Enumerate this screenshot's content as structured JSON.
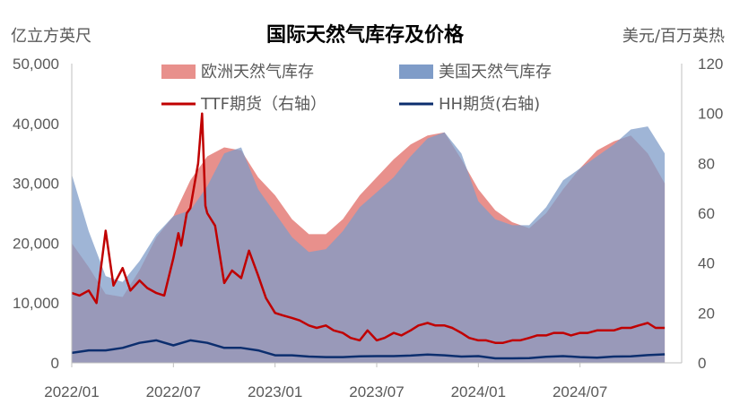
{
  "chart_data": {
    "type": "area",
    "title": "国际天然气库存及价格",
    "left_axis_unit": "亿立方英尺",
    "right_axis_unit": "美元/百万英热",
    "ylim_left": [
      0,
      50000
    ],
    "ylim_right": [
      0,
      120
    ],
    "yticks_left": [
      "0",
      "10,000",
      "20,000",
      "30,000",
      "40,000",
      "50,000"
    ],
    "yticks_right": [
      "0",
      "20",
      "40",
      "60",
      "80",
      "100",
      "120"
    ],
    "xlim": [
      "2022/01",
      "2024/12"
    ],
    "xticks": [
      "2022/01",
      "2022/07",
      "2023/01",
      "2023/07",
      "2024/01",
      "2024/07"
    ],
    "legend_position": "top",
    "series": [
      {
        "name": "欧洲天然气库存",
        "axis": "left",
        "kind": "area",
        "color": "#E8908C",
        "points": [
          [
            "2022/01",
            20000
          ],
          [
            "2022/02",
            16000
          ],
          [
            "2022/03",
            11500
          ],
          [
            "2022/04",
            11000
          ],
          [
            "2022/05",
            15500
          ],
          [
            "2022/06",
            21000
          ],
          [
            "2022/07",
            24500
          ],
          [
            "2022/08",
            30500
          ],
          [
            "2022/09",
            34500
          ],
          [
            "2022/10",
            36000
          ],
          [
            "2022/11",
            35500
          ],
          [
            "2022/12",
            31000
          ],
          [
            "2023/01",
            28000
          ],
          [
            "2023/02",
            24000
          ],
          [
            "2023/03",
            21500
          ],
          [
            "2023/04",
            21500
          ],
          [
            "2023/05",
            24000
          ],
          [
            "2023/06",
            28000
          ],
          [
            "2023/07",
            31000
          ],
          [
            "2023/08",
            34000
          ],
          [
            "2023/09",
            36500
          ],
          [
            "2023/10",
            38000
          ],
          [
            "2023/11",
            38500
          ],
          [
            "2023/12",
            34000
          ],
          [
            "2024/01",
            29000
          ],
          [
            "2024/02",
            25500
          ],
          [
            "2024/03",
            23500
          ],
          [
            "2024/04",
            22500
          ],
          [
            "2024/05",
            25000
          ],
          [
            "2024/06",
            29000
          ],
          [
            "2024/07",
            32500
          ],
          [
            "2024/08",
            35500
          ],
          [
            "2024/09",
            37000
          ],
          [
            "2024/10",
            38000
          ],
          [
            "2024/11",
            35000
          ],
          [
            "2024/12",
            30000
          ]
        ]
      },
      {
        "name": "美国天然气库存",
        "axis": "left",
        "kind": "area",
        "color": "#7F9CC8",
        "points": [
          [
            "2022/01",
            31500
          ],
          [
            "2022/02",
            22000
          ],
          [
            "2022/03",
            14500
          ],
          [
            "2022/04",
            13500
          ],
          [
            "2022/05",
            17000
          ],
          [
            "2022/06",
            21500
          ],
          [
            "2022/07",
            24500
          ],
          [
            "2022/08",
            25500
          ],
          [
            "2022/09",
            29500
          ],
          [
            "2022/10",
            35000
          ],
          [
            "2022/11",
            36000
          ],
          [
            "2022/12",
            29000
          ],
          [
            "2023/01",
            25000
          ],
          [
            "2023/02",
            21000
          ],
          [
            "2023/03",
            18500
          ],
          [
            "2023/04",
            19000
          ],
          [
            "2023/05",
            22000
          ],
          [
            "2023/06",
            26000
          ],
          [
            "2023/07",
            28500
          ],
          [
            "2023/08",
            31000
          ],
          [
            "2023/09",
            34500
          ],
          [
            "2023/10",
            37500
          ],
          [
            "2023/11",
            38500
          ],
          [
            "2023/12",
            35000
          ],
          [
            "2024/01",
            27000
          ],
          [
            "2024/02",
            24000
          ],
          [
            "2024/03",
            23000
          ],
          [
            "2024/04",
            23000
          ],
          [
            "2024/05",
            26000
          ],
          [
            "2024/06",
            30500
          ],
          [
            "2024/07",
            32500
          ],
          [
            "2024/08",
            34500
          ],
          [
            "2024/09",
            36500
          ],
          [
            "2024/10",
            39000
          ],
          [
            "2024/11",
            39500
          ],
          [
            "2024/12",
            35000
          ]
        ]
      },
      {
        "name": "TTF期货（右轴）",
        "axis": "right",
        "kind": "line",
        "color": "#C00000",
        "points": [
          [
            "2022/01",
            28
          ],
          [
            "2022/01/15",
            27
          ],
          [
            "2022/02",
            29
          ],
          [
            "2022/02/15",
            24
          ],
          [
            "2022/03",
            53
          ],
          [
            "2022/03/15",
            31
          ],
          [
            "2022/04",
            38
          ],
          [
            "2022/04/15",
            29
          ],
          [
            "2022/05",
            33
          ],
          [
            "2022/05/15",
            30
          ],
          [
            "2022/06",
            28
          ],
          [
            "2022/06/15",
            27
          ],
          [
            "2022/07",
            42
          ],
          [
            "2022/07/10",
            52
          ],
          [
            "2022/07/15",
            47
          ],
          [
            "2022/07/25",
            60
          ],
          [
            "2022/08",
            62
          ],
          [
            "2022/08/15",
            80
          ],
          [
            "2022/08/22",
            100
          ],
          [
            "2022/08/28",
            63
          ],
          [
            "2022/09",
            60
          ],
          [
            "2022/09/15",
            55
          ],
          [
            "2022/10",
            32
          ],
          [
            "2022/10/15",
            37
          ],
          [
            "2022/11",
            34
          ],
          [
            "2022/11/15",
            45
          ],
          [
            "2022/12",
            35
          ],
          [
            "2022/12/15",
            26
          ],
          [
            "2023/01",
            20
          ],
          [
            "2023/01/15",
            19
          ],
          [
            "2023/02",
            18
          ],
          [
            "2023/02/15",
            17
          ],
          [
            "2023/03",
            15
          ],
          [
            "2023/03/15",
            14
          ],
          [
            "2023/04",
            15
          ],
          [
            "2023/04/15",
            13
          ],
          [
            "2023/05",
            12
          ],
          [
            "2023/05/15",
            10
          ],
          [
            "2023/06",
            9
          ],
          [
            "2023/06/15",
            13
          ],
          [
            "2023/07",
            9
          ],
          [
            "2023/07/15",
            10
          ],
          [
            "2023/08",
            12
          ],
          [
            "2023/08/15",
            11
          ],
          [
            "2023/09",
            13
          ],
          [
            "2023/09/15",
            15
          ],
          [
            "2023/10",
            16
          ],
          [
            "2023/10/15",
            15
          ],
          [
            "2023/11",
            15
          ],
          [
            "2023/11/15",
            14
          ],
          [
            "2023/12",
            12
          ],
          [
            "2023/12/15",
            10
          ],
          [
            "2024/01",
            9
          ],
          [
            "2024/01/15",
            9
          ],
          [
            "2024/02",
            8
          ],
          [
            "2024/02/15",
            8
          ],
          [
            "2024/03",
            9
          ],
          [
            "2024/03/15",
            9
          ],
          [
            "2024/04",
            10
          ],
          [
            "2024/04/15",
            11
          ],
          [
            "2024/05",
            11
          ],
          [
            "2024/05/15",
            12
          ],
          [
            "2024/06",
            12
          ],
          [
            "2024/06/15",
            11
          ],
          [
            "2024/07",
            12
          ],
          [
            "2024/07/15",
            12
          ],
          [
            "2024/08",
            13
          ],
          [
            "2024/08/15",
            13
          ],
          [
            "2024/09",
            13
          ],
          [
            "2024/09/15",
            14
          ],
          [
            "2024/10",
            14
          ],
          [
            "2024/10/15",
            15
          ],
          [
            "2024/11",
            16
          ],
          [
            "2024/11/15",
            14
          ],
          [
            "2024/12",
            14
          ]
        ]
      },
      {
        "name": "HH期货(右轴)",
        "axis": "right",
        "kind": "line",
        "color": "#0C2E6E",
        "points": [
          [
            "2022/01",
            4
          ],
          [
            "2022/02",
            5
          ],
          [
            "2022/03",
            5
          ],
          [
            "2022/04",
            6
          ],
          [
            "2022/05",
            8
          ],
          [
            "2022/06",
            9
          ],
          [
            "2022/07",
            7
          ],
          [
            "2022/08",
            9
          ],
          [
            "2022/09",
            8
          ],
          [
            "2022/10",
            6
          ],
          [
            "2022/11",
            6
          ],
          [
            "2022/12",
            5
          ],
          [
            "2023/01",
            3
          ],
          [
            "2023/02",
            3
          ],
          [
            "2023/03",
            2.5
          ],
          [
            "2023/04",
            2.3
          ],
          [
            "2023/05",
            2.3
          ],
          [
            "2023/06",
            2.6
          ],
          [
            "2023/07",
            2.7
          ],
          [
            "2023/08",
            2.7
          ],
          [
            "2023/09",
            2.9
          ],
          [
            "2023/10",
            3.3
          ],
          [
            "2023/11",
            3
          ],
          [
            "2023/12",
            2.5
          ],
          [
            "2024/01",
            2.7
          ],
          [
            "2024/02",
            1.8
          ],
          [
            "2024/03",
            1.8
          ],
          [
            "2024/04",
            1.9
          ],
          [
            "2024/05",
            2.4
          ],
          [
            "2024/06",
            2.7
          ],
          [
            "2024/07",
            2.3
          ],
          [
            "2024/08",
            2.1
          ],
          [
            "2024/09",
            2.5
          ],
          [
            "2024/10",
            2.6
          ],
          [
            "2024/11",
            3.1
          ],
          [
            "2024/12",
            3.4
          ]
        ]
      }
    ]
  }
}
